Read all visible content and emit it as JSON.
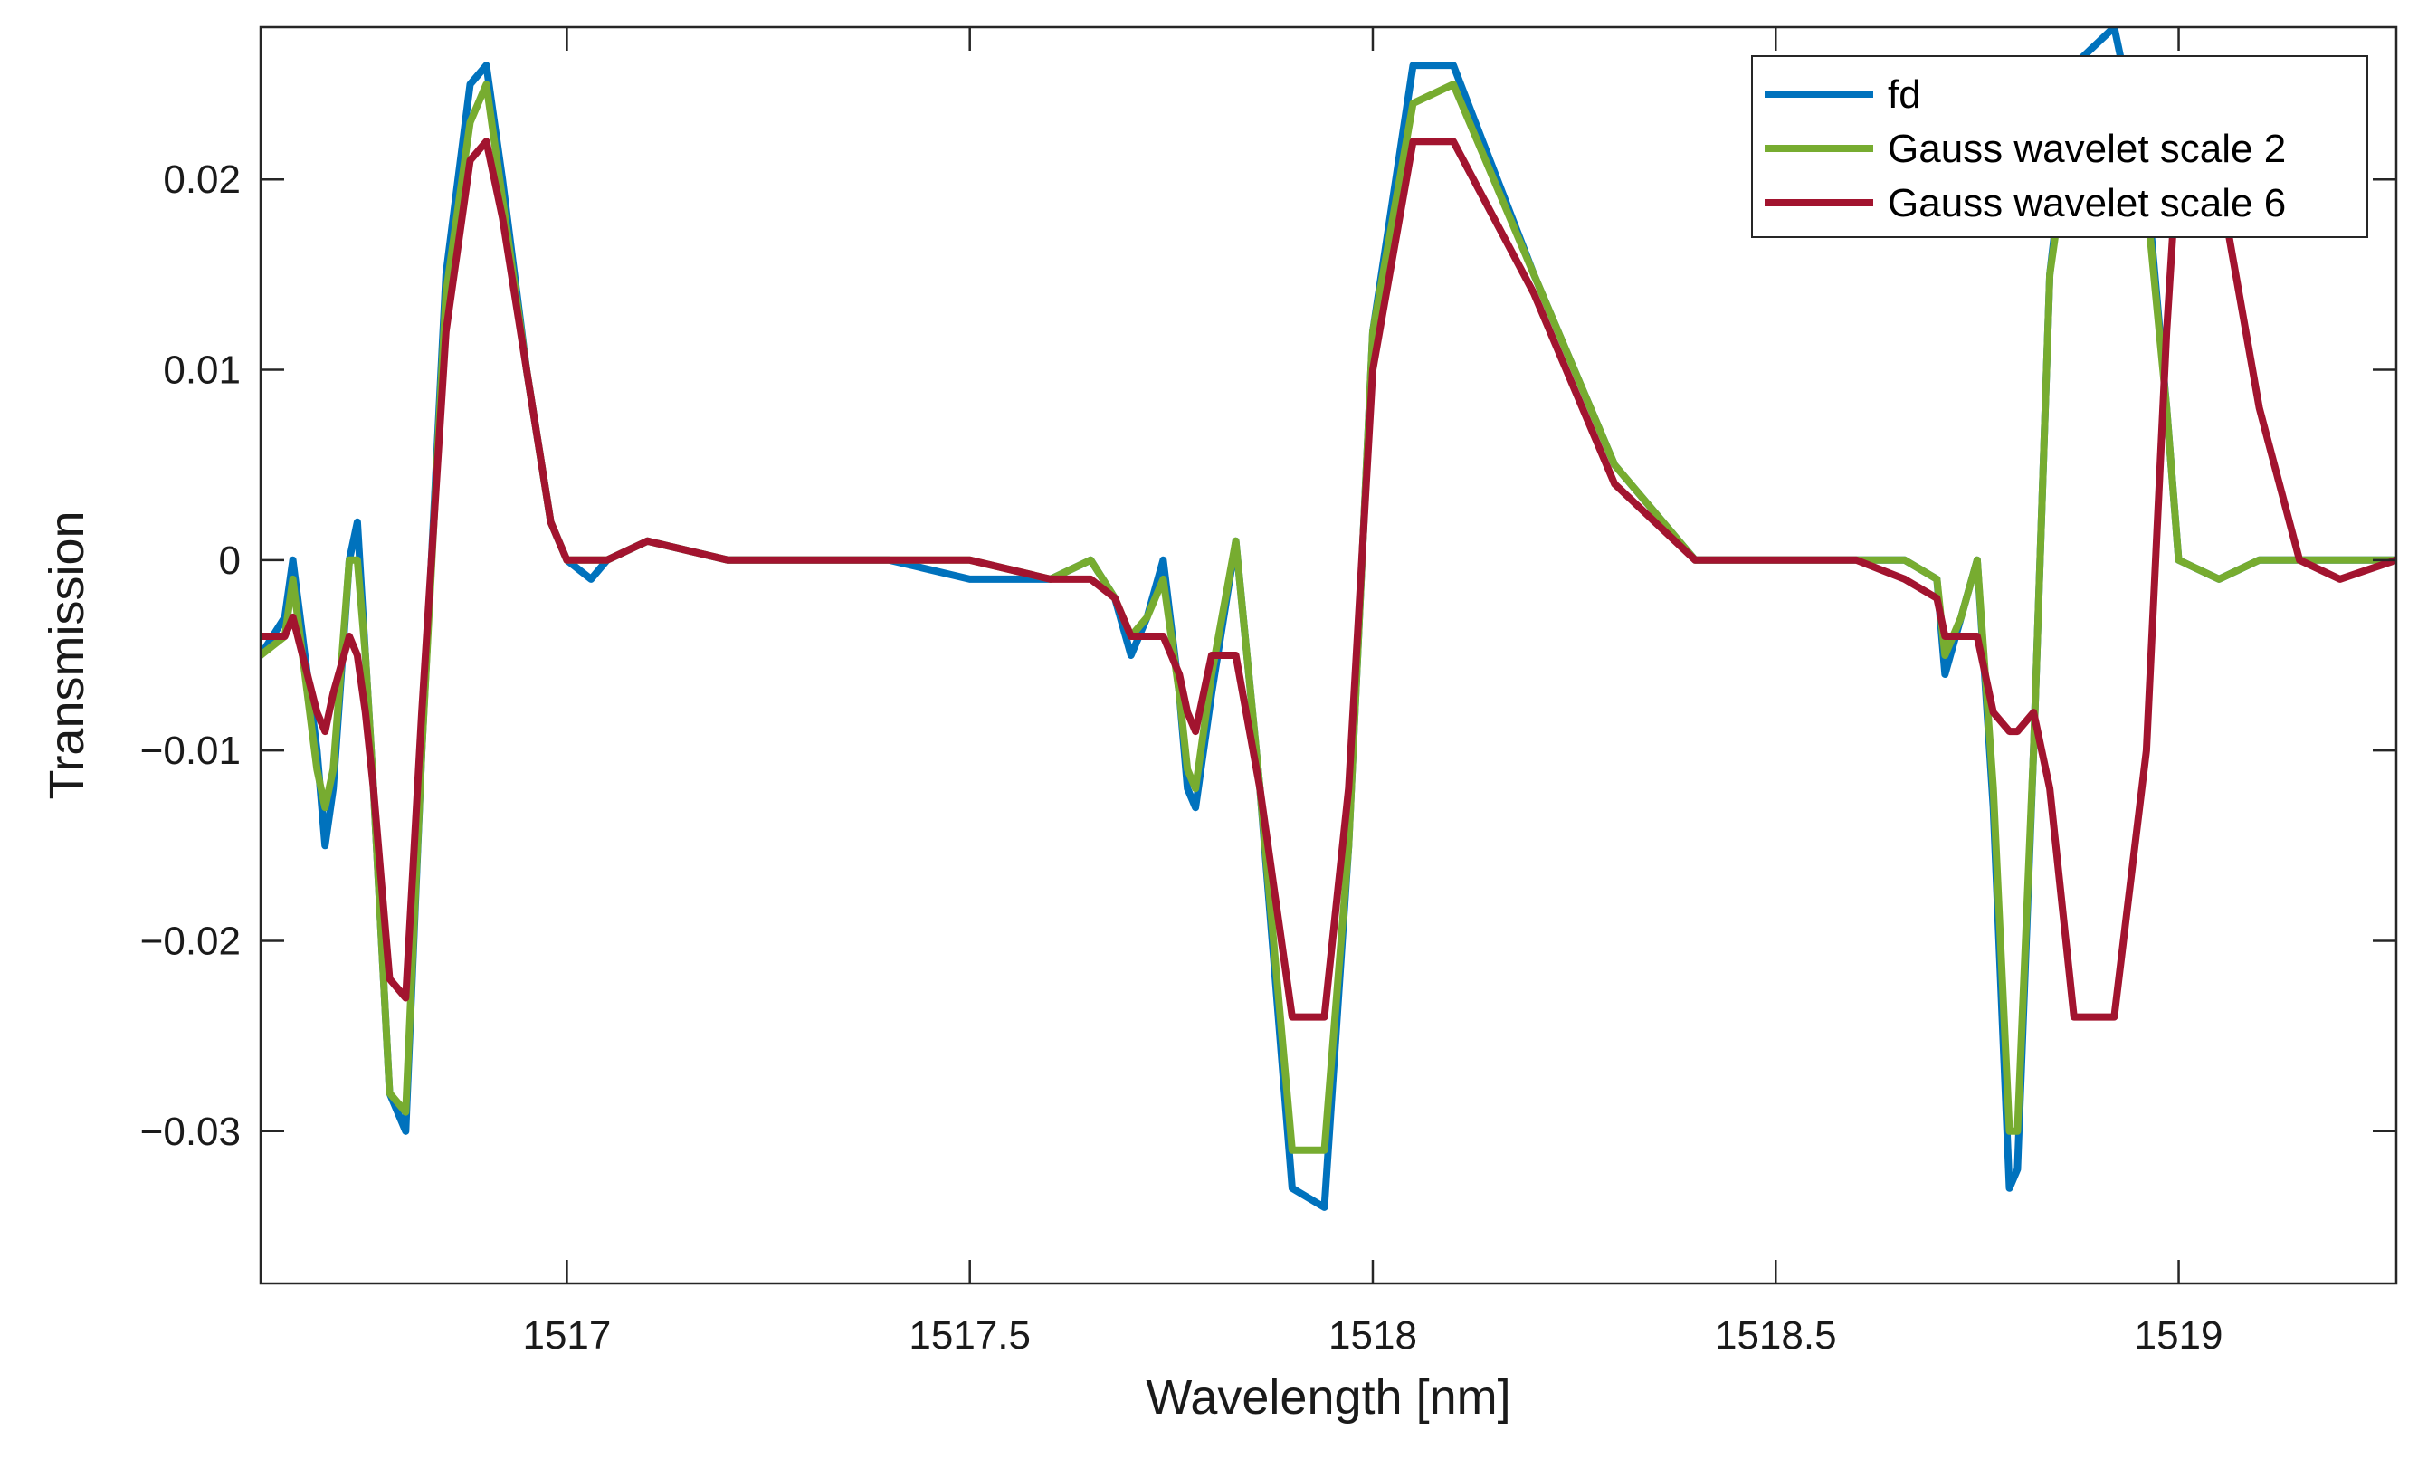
{
  "chart_data": {
    "type": "line",
    "title": "",
    "xlabel": "Wavelength [nm]",
    "ylabel": "Transmission",
    "xlim": [
      1516.62,
      1519.27
    ],
    "ylim": [
      -0.038,
      0.028
    ],
    "xticks": [
      1517,
      1517.5,
      1518,
      1518.5,
      1519
    ],
    "xtick_labels": [
      "1517",
      "1517.5",
      "1518",
      "1518.5",
      "1519"
    ],
    "yticks": [
      0.02,
      0.01,
      0,
      -0.01,
      -0.02,
      -0.03
    ],
    "ytick_labels": [
      "0.02",
      "0.01",
      "0",
      "−0.01",
      "−0.02",
      "−0.03"
    ],
    "grid": false,
    "legend_position": "top-right",
    "series": [
      {
        "name": "fd",
        "color": "#0072BD",
        "x": [
          1516.62,
          1516.65,
          1516.66,
          1516.69,
          1516.7,
          1516.71,
          1516.73,
          1516.74,
          1516.75,
          1516.76,
          1516.78,
          1516.8,
          1516.82,
          1516.85,
          1516.88,
          1516.9,
          1516.92,
          1516.95,
          1516.98,
          1517.0,
          1517.03,
          1517.05,
          1517.1,
          1517.2,
          1517.3,
          1517.4,
          1517.5,
          1517.6,
          1517.65,
          1517.68,
          1517.7,
          1517.72,
          1517.74,
          1517.76,
          1517.77,
          1517.78,
          1517.8,
          1517.83,
          1517.86,
          1517.9,
          1517.94,
          1517.97,
          1518.0,
          1518.05,
          1518.1,
          1518.2,
          1518.3,
          1518.4,
          1518.5,
          1518.6,
          1518.66,
          1518.7,
          1518.71,
          1518.73,
          1518.75,
          1518.77,
          1518.79,
          1518.8,
          1518.82,
          1518.84,
          1518.87,
          1518.92,
          1518.96,
          1518.985,
          1519.0,
          1519.05,
          1519.1,
          1519.15,
          1519.2,
          1519.27
        ],
        "y": [
          -0.005,
          -0.003,
          0.0,
          -0.01,
          -0.015,
          -0.012,
          0.0,
          0.002,
          -0.005,
          -0.012,
          -0.028,
          -0.03,
          -0.01,
          0.015,
          0.025,
          0.026,
          0.02,
          0.01,
          0.002,
          0.0,
          -0.001,
          0.0,
          0.001,
          0.0,
          0.0,
          0.0,
          -0.001,
          -0.001,
          0.0,
          -0.002,
          -0.005,
          -0.003,
          0.0,
          -0.007,
          -0.012,
          -0.013,
          -0.007,
          0.001,
          -0.012,
          -0.033,
          -0.034,
          -0.015,
          0.012,
          0.026,
          0.026,
          0.015,
          0.005,
          0.0,
          0.0,
          0.0,
          0.0,
          -0.001,
          -0.006,
          -0.003,
          0.0,
          -0.013,
          -0.033,
          -0.032,
          -0.01,
          0.015,
          0.026,
          0.028,
          0.02,
          0.008,
          0.0,
          -0.001,
          0.0,
          0.0,
          0.0,
          0.0
        ]
      },
      {
        "name": "Gauss wavelet scale 2",
        "color": "#77AC30",
        "x": [
          1516.62,
          1516.65,
          1516.66,
          1516.69,
          1516.7,
          1516.71,
          1516.73,
          1516.74,
          1516.75,
          1516.76,
          1516.78,
          1516.8,
          1516.82,
          1516.85,
          1516.88,
          1516.9,
          1516.92,
          1516.95,
          1516.98,
          1517.0,
          1517.03,
          1517.05,
          1517.1,
          1517.2,
          1517.3,
          1517.4,
          1517.5,
          1517.6,
          1517.65,
          1517.68,
          1517.7,
          1517.72,
          1517.74,
          1517.76,
          1517.77,
          1517.78,
          1517.8,
          1517.83,
          1517.86,
          1517.9,
          1517.94,
          1517.97,
          1518.0,
          1518.05,
          1518.1,
          1518.2,
          1518.3,
          1518.4,
          1518.5,
          1518.6,
          1518.66,
          1518.7,
          1518.71,
          1518.73,
          1518.75,
          1518.77,
          1518.79,
          1518.8,
          1518.82,
          1518.84,
          1518.87,
          1518.92,
          1518.96,
          1518.985,
          1519.0,
          1519.05,
          1519.1,
          1519.15,
          1519.2,
          1519.27
        ],
        "y": [
          -0.005,
          -0.004,
          -0.001,
          -0.011,
          -0.013,
          -0.011,
          0.0,
          0.0,
          -0.005,
          -0.012,
          -0.028,
          -0.029,
          -0.01,
          0.014,
          0.023,
          0.025,
          0.019,
          0.01,
          0.002,
          0.0,
          0.0,
          0.0,
          0.001,
          0.0,
          0.0,
          0.0,
          0.0,
          -0.001,
          0.0,
          -0.002,
          -0.004,
          -0.003,
          -0.001,
          -0.007,
          -0.011,
          -0.012,
          -0.006,
          0.001,
          -0.012,
          -0.031,
          -0.031,
          -0.015,
          0.012,
          0.024,
          0.025,
          0.015,
          0.005,
          0.0,
          0.0,
          0.0,
          0.0,
          -0.001,
          -0.005,
          -0.003,
          0.0,
          -0.012,
          -0.03,
          -0.03,
          -0.01,
          0.015,
          0.024,
          0.026,
          0.019,
          0.008,
          0.0,
          -0.001,
          0.0,
          0.0,
          0.0,
          0.0
        ]
      },
      {
        "name": "Gauss wavelet scale 6",
        "color": "#A2142F",
        "x": [
          1516.62,
          1516.65,
          1516.66,
          1516.69,
          1516.7,
          1516.71,
          1516.73,
          1516.74,
          1516.75,
          1516.76,
          1516.78,
          1516.8,
          1516.82,
          1516.85,
          1516.88,
          1516.9,
          1516.92,
          1516.95,
          1516.98,
          1517.0,
          1517.03,
          1517.05,
          1517.1,
          1517.2,
          1517.3,
          1517.4,
          1517.5,
          1517.6,
          1517.65,
          1517.68,
          1517.7,
          1517.72,
          1517.74,
          1517.76,
          1517.77,
          1517.78,
          1517.8,
          1517.83,
          1517.86,
          1517.9,
          1517.94,
          1517.97,
          1518.0,
          1518.05,
          1518.1,
          1518.2,
          1518.3,
          1518.4,
          1518.5,
          1518.6,
          1518.66,
          1518.7,
          1518.71,
          1518.73,
          1518.75,
          1518.77,
          1518.79,
          1518.8,
          1518.82,
          1518.84,
          1518.87,
          1518.92,
          1518.96,
          1518.985,
          1519.0,
          1519.05,
          1519.1,
          1519.15,
          1519.2,
          1519.27
        ],
        "y": [
          -0.004,
          -0.004,
          -0.003,
          -0.008,
          -0.009,
          -0.007,
          -0.004,
          -0.005,
          -0.008,
          -0.012,
          -0.022,
          -0.023,
          -0.008,
          0.012,
          0.021,
          0.022,
          0.018,
          0.01,
          0.002,
          0.0,
          0.0,
          0.0,
          0.001,
          0.0,
          0.0,
          0.0,
          0.0,
          -0.001,
          -0.001,
          -0.002,
          -0.004,
          -0.004,
          -0.004,
          -0.006,
          -0.008,
          -0.009,
          -0.005,
          -0.005,
          -0.012,
          -0.024,
          -0.024,
          -0.012,
          0.01,
          0.022,
          0.022,
          0.014,
          0.004,
          0.0,
          0.0,
          0.0,
          -0.001,
          -0.002,
          -0.004,
          -0.004,
          -0.004,
          -0.008,
          -0.009,
          -0.009,
          -0.008,
          -0.012,
          -0.024,
          -0.024,
          -0.01,
          0.012,
          0.022,
          0.02,
          0.008,
          0.0,
          -0.001,
          0.0
        ]
      }
    ]
  }
}
